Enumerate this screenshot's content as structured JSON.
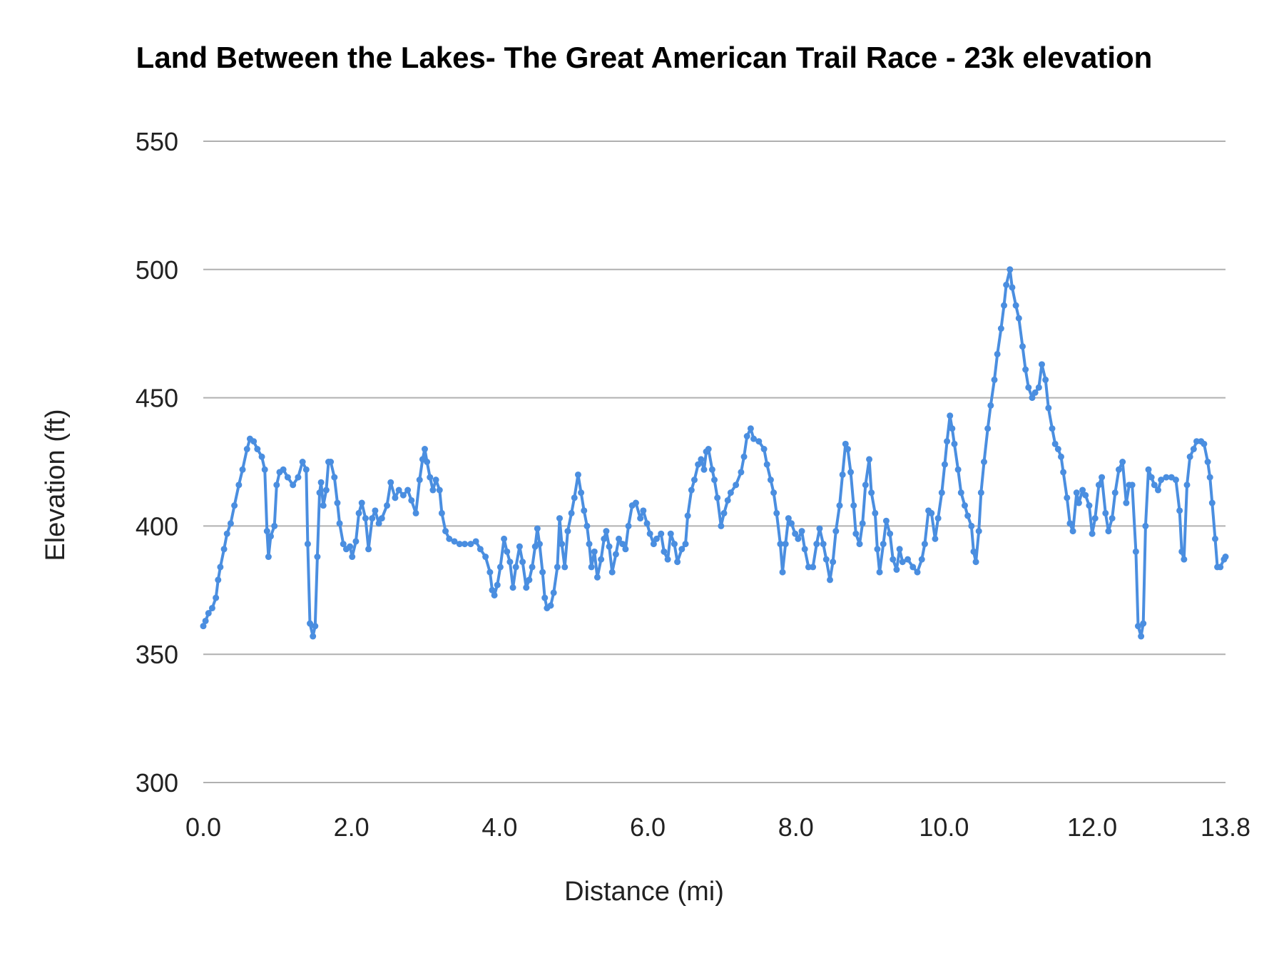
{
  "chart_data": {
    "type": "line",
    "title": "Land Between the Lakes- The Great American Trail Race - 23k elevation",
    "xlabel": "Distance (mi)",
    "ylabel": "Elevation (ft)",
    "xlim": [
      0,
      13.8
    ],
    "ylim": [
      300,
      550
    ],
    "x_ticks": [
      "0.0",
      "2.0",
      "4.0",
      "6.0",
      "8.0",
      "10.0",
      "12.0",
      "13.8"
    ],
    "y_ticks": [
      "300",
      "350",
      "400",
      "450",
      "500",
      "550"
    ],
    "grid": "horizontal",
    "legend": "none",
    "series_color": "#4a8ee0",
    "markers": true,
    "x": [
      0,
      0.03,
      0.07,
      0.12,
      0.17,
      0.2,
      0.23,
      0.28,
      0.32,
      0.37,
      0.42,
      0.48,
      0.53,
      0.59,
      0.63,
      0.68,
      0.73,
      0.79,
      0.83,
      0.86,
      0.88,
      0.91,
      0.96,
      0.99,
      1.03,
      1.08,
      1.14,
      1.21,
      1.28,
      1.34,
      1.39,
      1.41,
      1.44,
      1.48,
      1.51,
      1.54,
      1.57,
      1.59,
      1.62,
      1.66,
      1.69,
      1.72,
      1.77,
      1.81,
      1.84,
      1.89,
      1.93,
      1.98,
      2.01,
      2.06,
      2.1,
      2.14,
      2.19,
      2.23,
      2.28,
      2.32,
      2.37,
      2.41,
      2.48,
      2.53,
      2.59,
      2.64,
      2.7,
      2.76,
      2.81,
      2.87,
      2.92,
      2.96,
      2.99,
      3.02,
      3.06,
      3.1,
      3.14,
      3.19,
      3.22,
      3.27,
      3.32,
      3.39,
      3.46,
      3.53,
      3.61,
      3.68,
      3.74,
      3.81,
      3.87,
      3.9,
      3.93,
      3.97,
      4.01,
      4.06,
      4.1,
      4.14,
      4.18,
      4.22,
      4.27,
      4.31,
      4.36,
      4.4,
      4.44,
      4.48,
      4.51,
      4.54,
      4.58,
      4.61,
      4.64,
      4.69,
      4.73,
      4.78,
      4.81,
      4.84,
      4.88,
      4.92,
      4.97,
      5.01,
      5.06,
      5.1,
      5.14,
      5.18,
      5.21,
      5.24,
      5.28,
      5.32,
      5.37,
      5.41,
      5.44,
      5.48,
      5.52,
      5.57,
      5.61,
      5.66,
      5.7,
      5.74,
      5.79,
      5.84,
      5.9,
      5.94,
      5.99,
      6.03,
      6.08,
      6.12,
      6.18,
      6.22,
      6.27,
      6.31,
      6.36,
      6.4,
      6.46,
      6.51,
      6.54,
      6.59,
      6.63,
      6.68,
      6.72,
      6.76,
      6.79,
      6.82,
      6.87,
      6.9,
      6.94,
      6.99,
      7.03,
      7.08,
      7.12,
      7.19,
      7.26,
      7.3,
      7.34,
      7.39,
      7.43,
      7.5,
      7.57,
      7.61,
      7.66,
      7.7,
      7.74,
      7.79,
      7.82,
      7.86,
      7.9,
      7.94,
      7.99,
      8.03,
      8.08,
      8.12,
      8.17,
      8.23,
      8.28,
      8.32,
      8.37,
      8.41,
      8.46,
      8.5,
      8.54,
      8.59,
      8.63,
      8.67,
      8.7,
      8.74,
      8.78,
      8.81,
      8.86,
      8.9,
      8.94,
      8.99,
      9.02,
      9.07,
      9.1,
      9.13,
      9.18,
      9.22,
      9.27,
      9.31,
      9.36,
      9.4,
      9.44,
      9.51,
      9.58,
      9.64,
      9.7,
      9.74,
      9.79,
      9.83,
      9.88,
      9.92,
      9.97,
      10.01,
      10.04,
      10.08,
      10.11,
      10.14,
      10.19,
      10.23,
      10.28,
      10.32,
      10.37,
      10.4,
      10.43,
      10.47,
      10.5,
      10.54,
      10.59,
      10.63,
      10.68,
      10.72,
      10.77,
      10.81,
      10.84,
      10.89,
      10.92,
      10.97,
      11.01,
      11.06,
      11.1,
      11.14,
      11.19,
      11.23,
      11.28,
      11.32,
      11.37,
      11.41,
      11.46,
      11.5,
      11.54,
      11.58,
      11.61,
      11.66,
      11.7,
      11.74,
      11.79,
      11.82,
      11.87,
      11.91,
      11.96,
      12.0,
      12.04,
      12.09,
      12.13,
      12.18,
      12.22,
      12.27,
      12.31,
      12.36,
      12.41,
      12.46,
      12.5,
      12.54,
      12.59,
      12.62,
      12.66,
      12.69,
      12.72,
      12.76,
      12.8,
      12.84,
      12.89,
      12.93,
      13.0,
      13.07,
      13.13,
      13.18,
      13.21,
      13.24,
      13.28,
      13.32,
      13.37,
      13.41,
      13.47,
      13.51,
      13.56,
      13.59,
      13.62,
      13.66,
      13.69,
      13.73,
      13.78,
      13.8
    ],
    "y": [
      361,
      363,
      366,
      368,
      372,
      379,
      384,
      391,
      397,
      401,
      408,
      416,
      422,
      430,
      434,
      433,
      430,
      427,
      422,
      398,
      388,
      396,
      400,
      416,
      421,
      422,
      419,
      416,
      419,
      425,
      422,
      393,
      362,
      357,
      361,
      388,
      413,
      417,
      408,
      414,
      425,
      425,
      419,
      409,
      401,
      393,
      391,
      392,
      388,
      394,
      405,
      409,
      403,
      391,
      403,
      406,
      401,
      403,
      408,
      417,
      411,
      414,
      412,
      414,
      410,
      405,
      418,
      426,
      430,
      425,
      419,
      414,
      418,
      414,
      405,
      398,
      395,
      394,
      393,
      393,
      393,
      394,
      391,
      388,
      382,
      375,
      373,
      377,
      384,
      395,
      390,
      386,
      376,
      384,
      392,
      386,
      376,
      379,
      384,
      392,
      399,
      393,
      382,
      372,
      368,
      369,
      374,
      384,
      403,
      393,
      384,
      398,
      405,
      411,
      420,
      413,
      406,
      400,
      393,
      384,
      390,
      380,
      387,
      395,
      398,
      392,
      382,
      389,
      395,
      393,
      391,
      400,
      408,
      409,
      403,
      406,
      401,
      397,
      393,
      395,
      397,
      390,
      387,
      397,
      393,
      386,
      391,
      393,
      404,
      414,
      418,
      424,
      426,
      422,
      429,
      430,
      422,
      418,
      411,
      400,
      405,
      410,
      413,
      416,
      421,
      427,
      435,
      438,
      434,
      433,
      430,
      424,
      418,
      413,
      405,
      393,
      382,
      393,
      403,
      401,
      397,
      395,
      398,
      391,
      384,
      384,
      393,
      399,
      393,
      387,
      379,
      386,
      398,
      408,
      420,
      432,
      430,
      421,
      408,
      397,
      393,
      401,
      416,
      426,
      413,
      405,
      391,
      382,
      393,
      402,
      397,
      387,
      383,
      391,
      386,
      387,
      384,
      382,
      387,
      393,
      406,
      405,
      395,
      403,
      413,
      424,
      433,
      443,
      438,
      432,
      422,
      413,
      408,
      404,
      400,
      390,
      386,
      398,
      413,
      425,
      438,
      447,
      457,
      467,
      477,
      486,
      494,
      500,
      493,
      486,
      481,
      470,
      461,
      454,
      450,
      452,
      454,
      463,
      457,
      446,
      438,
      432,
      430,
      427,
      421,
      411,
      401,
      398,
      413,
      409,
      414,
      412,
      408,
      397,
      403,
      416,
      419,
      405,
      398,
      403,
      413,
      422,
      425,
      409,
      416,
      416,
      390,
      361,
      357,
      362,
      400,
      422,
      419,
      416,
      414,
      418,
      419,
      419,
      418,
      406,
      390,
      387,
      416,
      427,
      430,
      433,
      433,
      432,
      425,
      419,
      409,
      395,
      384,
      384,
      387,
      388
    ]
  }
}
